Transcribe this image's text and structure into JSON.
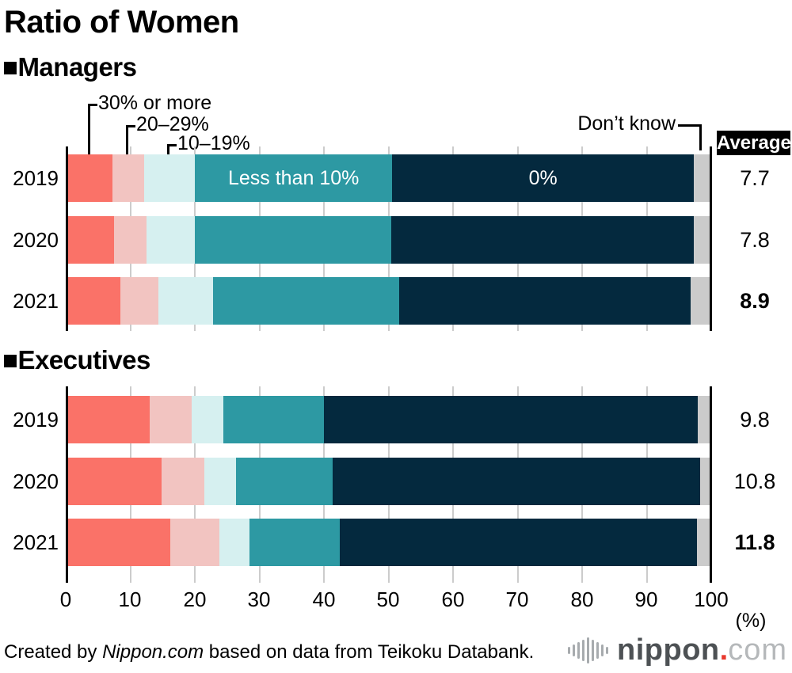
{
  "page": {
    "title": "Ratio of Women"
  },
  "legend": {
    "callout_30": "30% or more",
    "callout_20": "20–29%",
    "callout_10": "10–19%",
    "callout_dontknow": "Don’t know",
    "average_label": "Average"
  },
  "axis": {
    "ticks": [
      "0",
      "10",
      "20",
      "30",
      "40",
      "50",
      "60",
      "70",
      "80",
      "90",
      "100"
    ],
    "unit_label": "(%)",
    "xlim": [
      0,
      100
    ]
  },
  "colors": {
    "30_or_more": "#fa7268",
    "20_29": "#f2c4c1",
    "10_19": "#d6f0f0",
    "less_than_10": "#2d99a3",
    "zero": "#04293e",
    "dont_know": "#cbcbcb",
    "gridline": "#cccccc",
    "average_header_bg": "#000000"
  },
  "chart_data": [
    {
      "type": "bar",
      "orientation": "horizontal-stacked",
      "marker": "■",
      "title": "Managers",
      "categories": [
        "2019",
        "2020",
        "2021"
      ],
      "series": [
        {
          "name": "30% or more",
          "color": "#fa7268",
          "values": [
            7.2,
            7.5,
            8.5
          ]
        },
        {
          "name": "20–29%",
          "color": "#f2c4c1",
          "values": [
            5.0,
            5.0,
            5.9
          ]
        },
        {
          "name": "10–19%",
          "color": "#d6f0f0",
          "values": [
            7.8,
            7.5,
            8.4
          ]
        },
        {
          "name": "Less than 10%",
          "color": "#2d99a3",
          "values": [
            30.6,
            30.4,
            28.8
          ]
        },
        {
          "name": "0%",
          "color": "#04293e",
          "values": [
            46.7,
            46.9,
            45.2
          ]
        },
        {
          "name": "Don’t know",
          "color": "#cbcbcb",
          "values": [
            2.7,
            2.7,
            3.2
          ]
        }
      ],
      "inbar_labels": [
        {
          "row": 0,
          "series": 3,
          "text": "Less than 10%"
        },
        {
          "row": 0,
          "series": 4,
          "text": "0%"
        }
      ],
      "averages": [
        "7.7",
        "7.8",
        "8.9"
      ],
      "bold_average_index": 2,
      "xlim": [
        0,
        100
      ]
    },
    {
      "type": "bar",
      "orientation": "horizontal-stacked",
      "marker": "■",
      "title": "Executives",
      "categories": [
        "2019",
        "2020",
        "2021"
      ],
      "series": [
        {
          "name": "30% or more",
          "color": "#fa7268",
          "values": [
            13.0,
            14.8,
            16.2
          ]
        },
        {
          "name": "20–29%",
          "color": "#f2c4c1",
          "values": [
            6.5,
            6.7,
            7.6
          ]
        },
        {
          "name": "10–19%",
          "color": "#d6f0f0",
          "values": [
            4.9,
            4.9,
            4.7
          ]
        },
        {
          "name": "Less than 10%",
          "color": "#2d99a3",
          "values": [
            15.6,
            15.0,
            13.9
          ]
        },
        {
          "name": "0%",
          "color": "#04293e",
          "values": [
            57.9,
            56.9,
            55.4
          ]
        },
        {
          "name": "Don’t know",
          "color": "#cbcbcb",
          "values": [
            2.1,
            1.7,
            2.2
          ]
        }
      ],
      "inbar_labels": [],
      "averages": [
        "9.8",
        "10.8",
        "11.8"
      ],
      "bold_average_index": 2,
      "xlim": [
        0,
        100
      ]
    }
  ],
  "footer": {
    "credit_prefix": "Created by ",
    "credit_source": "Nippon.com",
    "credit_suffix": " based on data from Teikoku Databank.",
    "logo": {
      "brand": "nippon",
      "dot": ".",
      "tld": "com"
    }
  }
}
